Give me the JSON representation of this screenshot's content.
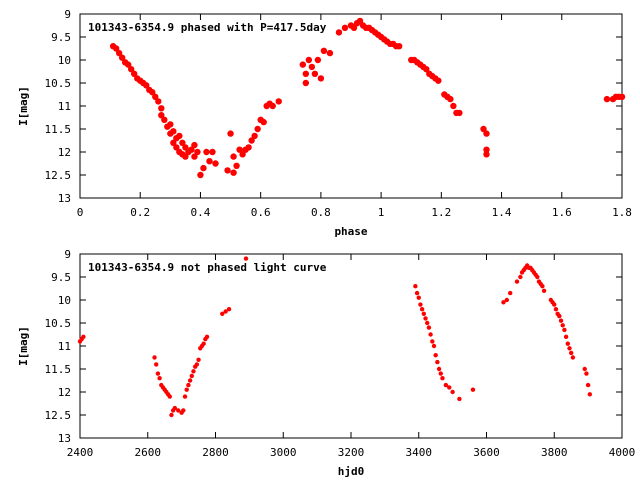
{
  "chart_data": [
    {
      "type": "scatter",
      "title": "101343-6354.9 phased with P=417.5day",
      "xlabel": "phase",
      "ylabel": "I[mag]",
      "xlim": [
        0,
        1.8
      ],
      "ylim": [
        9,
        13
      ],
      "y_inverted": true,
      "grid": false,
      "x_ticks": [
        "0",
        "0.2",
        "0.4",
        "0.6",
        "0.8",
        "1",
        "1.2",
        "1.4",
        "1.6",
        "1.8"
      ],
      "y_ticks": [
        "9",
        "9.5",
        "10",
        "10.5",
        "11",
        "11.5",
        "12",
        "12.5",
        "13"
      ],
      "marker_color": "#ff0000",
      "x": [
        0.11,
        0.12,
        0.13,
        0.14,
        0.15,
        0.16,
        0.17,
        0.18,
        0.19,
        0.2,
        0.21,
        0.22,
        0.23,
        0.24,
        0.25,
        0.26,
        0.27,
        0.27,
        0.28,
        0.29,
        0.3,
        0.3,
        0.31,
        0.31,
        0.32,
        0.32,
        0.33,
        0.33,
        0.34,
        0.34,
        0.35,
        0.35,
        0.36,
        0.37,
        0.38,
        0.38,
        0.39,
        0.4,
        0.41,
        0.42,
        0.43,
        0.44,
        0.45,
        0.49,
        0.5,
        0.51,
        0.51,
        0.52,
        0.53,
        0.54,
        0.55,
        0.56,
        0.57,
        0.58,
        0.59,
        0.6,
        0.61,
        0.62,
        0.63,
        0.64,
        0.66,
        0.74,
        0.75,
        0.75,
        0.76,
        0.77,
        0.78,
        0.79,
        0.8,
        0.81,
        0.83,
        0.86,
        0.88,
        0.9,
        0.91,
        0.92,
        0.93,
        0.94,
        0.95,
        0.96,
        0.97,
        0.98,
        0.99,
        1.0,
        1.01,
        1.02,
        1.03,
        1.04,
        1.05,
        1.06,
        1.1,
        1.11,
        1.12,
        1.13,
        1.14,
        1.15,
        1.16,
        1.17,
        1.18,
        1.19,
        1.21,
        1.22,
        1.23,
        1.24,
        1.25,
        1.26,
        1.34,
        1.35,
        1.35,
        1.35,
        1.75,
        1.77,
        1.78,
        1.79,
        1.8
      ],
      "y": [
        9.7,
        9.75,
        9.85,
        9.95,
        10.05,
        10.1,
        10.2,
        10.3,
        10.4,
        10.45,
        10.5,
        10.55,
        10.65,
        10.7,
        10.8,
        10.9,
        11.05,
        11.2,
        11.3,
        11.45,
        11.4,
        11.6,
        11.55,
        11.8,
        11.7,
        11.9,
        11.65,
        12.0,
        11.8,
        12.05,
        11.9,
        12.1,
        12.0,
        11.95,
        11.85,
        12.1,
        12.0,
        12.5,
        12.35,
        12.0,
        12.2,
        12.0,
        12.25,
        12.4,
        11.6,
        12.1,
        12.45,
        12.3,
        11.95,
        12.05,
        11.95,
        11.9,
        11.75,
        11.65,
        11.5,
        11.3,
        11.35,
        11.0,
        10.95,
        11.0,
        10.9,
        10.1,
        10.3,
        10.5,
        10.0,
        10.15,
        10.3,
        10.0,
        10.4,
        9.8,
        9.85,
        9.4,
        9.3,
        9.25,
        9.3,
        9.2,
        9.15,
        9.25,
        9.3,
        9.3,
        9.35,
        9.4,
        9.45,
        9.5,
        9.55,
        9.6,
        9.65,
        9.65,
        9.7,
        9.7,
        10.0,
        10.0,
        10.05,
        10.1,
        10.15,
        10.2,
        10.3,
        10.35,
        10.4,
        10.45,
        10.75,
        10.8,
        10.85,
        11.0,
        11.15,
        11.15,
        11.5,
        11.6,
        11.95,
        12.05,
        10.85,
        10.85,
        10.8,
        10.8,
        10.8
      ]
    },
    {
      "type": "scatter",
      "title": "101343-6354.9 not phased light curve",
      "xlabel": "hjd0",
      "ylabel": "I[mag]",
      "xlim": [
        2400,
        4000
      ],
      "ylim": [
        9,
        13
      ],
      "y_inverted": true,
      "grid": false,
      "x_ticks": [
        "2400",
        "2600",
        "2800",
        "3000",
        "3200",
        "3400",
        "3600",
        "3800",
        "4000"
      ],
      "y_ticks": [
        "9",
        "9.5",
        "10",
        "10.5",
        "11",
        "11.5",
        "12",
        "12.5",
        "13"
      ],
      "marker_color": "#ff0000",
      "x": [
        2400,
        2405,
        2410,
        2620,
        2625,
        2630,
        2635,
        2640,
        2645,
        2650,
        2655,
        2660,
        2665,
        2670,
        2675,
        2680,
        2690,
        2700,
        2705,
        2710,
        2715,
        2720,
        2725,
        2730,
        2735,
        2740,
        2745,
        2750,
        2755,
        2760,
        2765,
        2770,
        2775,
        2820,
        2830,
        2840,
        2890,
        3390,
        3395,
        3400,
        3405,
        3410,
        3415,
        3420,
        3425,
        3430,
        3435,
        3440,
        3445,
        3450,
        3455,
        3460,
        3465,
        3470,
        3480,
        3490,
        3500,
        3520,
        3560,
        3650,
        3660,
        3670,
        3690,
        3700,
        3705,
        3710,
        3715,
        3720,
        3725,
        3730,
        3735,
        3740,
        3745,
        3750,
        3755,
        3760,
        3765,
        3770,
        3790,
        3795,
        3800,
        3805,
        3810,
        3815,
        3820,
        3825,
        3830,
        3835,
        3840,
        3845,
        3850,
        3855,
        3890,
        3895,
        3900,
        3905
      ],
      "y": [
        10.9,
        10.85,
        10.8,
        11.25,
        11.4,
        11.6,
        11.7,
        11.85,
        11.9,
        11.95,
        12.0,
        12.05,
        12.1,
        12.5,
        12.4,
        12.35,
        12.4,
        12.45,
        12.4,
        12.1,
        11.95,
        11.85,
        11.75,
        11.65,
        11.55,
        11.45,
        11.4,
        11.3,
        11.05,
        11.0,
        10.95,
        10.85,
        10.8,
        10.3,
        10.25,
        10.2,
        9.1,
        9.7,
        9.85,
        9.95,
        10.1,
        10.2,
        10.3,
        10.4,
        10.5,
        10.6,
        10.75,
        10.9,
        11.0,
        11.2,
        11.35,
        11.5,
        11.6,
        11.7,
        11.85,
        11.9,
        12.0,
        12.15,
        11.95,
        10.05,
        10.0,
        9.85,
        9.6,
        9.5,
        9.4,
        9.35,
        9.3,
        9.25,
        9.3,
        9.3,
        9.35,
        9.4,
        9.45,
        9.5,
        9.6,
        9.65,
        9.7,
        9.8,
        10.0,
        10.05,
        10.1,
        10.2,
        10.3,
        10.35,
        10.45,
        10.55,
        10.65,
        10.8,
        10.95,
        11.05,
        11.15,
        11.25,
        11.5,
        11.6,
        11.85,
        12.05
      ]
    }
  ]
}
